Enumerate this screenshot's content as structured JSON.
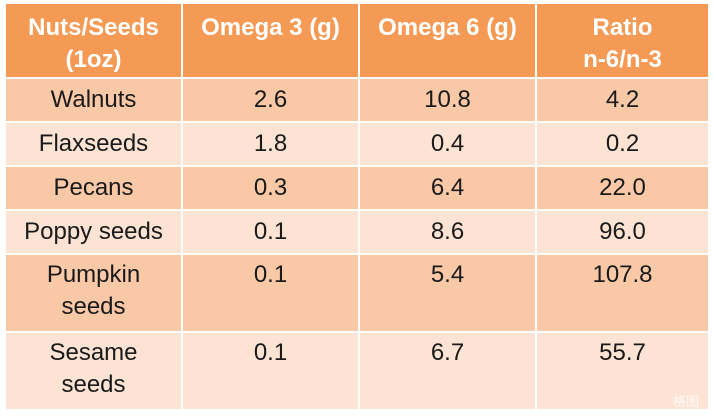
{
  "table": {
    "headers": [
      {
        "line1": "Nuts/Seeds",
        "line2": "(1oz)"
      },
      {
        "line1": "Omega 3 (g)",
        "line2": ""
      },
      {
        "line1": "Omega 6 (g)",
        "line2": ""
      },
      {
        "line1": "Ratio",
        "line2": "n-6/n-3"
      }
    ],
    "rows": [
      {
        "name1": "Walnuts",
        "name2": "",
        "omega3": "2.6",
        "omega6": "10.8",
        "ratio": "4.2"
      },
      {
        "name1": "Flaxseeds",
        "name2": "",
        "omega3": "1.8",
        "omega6": "0.4",
        "ratio": "0.2"
      },
      {
        "name1": "Pecans",
        "name2": "",
        "omega3": "0.3",
        "omega6": "6.4",
        "ratio": "22.0"
      },
      {
        "name1": "Poppy seeds",
        "name2": "",
        "omega3": "0.1",
        "omega6": "8.6",
        "ratio": "96.0"
      },
      {
        "name1": "Pumpkin",
        "name2": "seeds",
        "omega3": "0.1",
        "omega6": "5.4",
        "ratio": "107.8"
      },
      {
        "name1": "Sesame",
        "name2": "seeds",
        "omega3": "0.1",
        "omega6": "6.7",
        "ratio": "55.7"
      }
    ]
  },
  "watermark": "格图",
  "colors": {
    "header_bg": "#f59a55",
    "row_dark": "#f9c8a6",
    "row_light": "#fde3d3"
  }
}
